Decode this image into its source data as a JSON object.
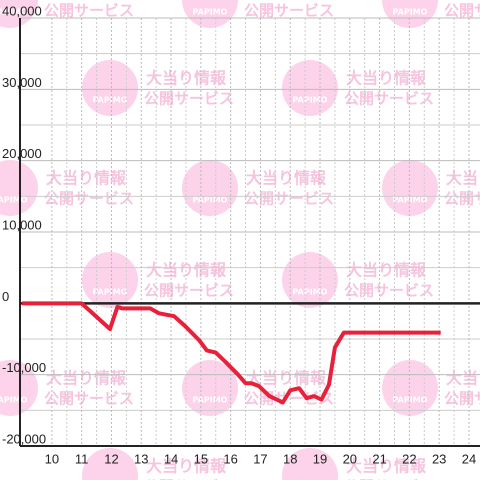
{
  "chart_data": {
    "type": "line",
    "x": [
      9.0,
      11.0,
      11.45,
      11.95,
      12.2,
      12.35,
      13.3,
      13.6,
      14.1,
      14.45,
      14.95,
      15.2,
      15.5,
      15.85,
      16.25,
      16.5,
      16.7,
      16.95,
      17.3,
      17.75,
      18.0,
      18.3,
      18.55,
      18.8,
      19.05,
      19.3,
      19.5,
      19.8,
      23.05
    ],
    "series": [
      {
        "color": "#e8203a",
        "values": [
          0,
          0,
          -1700,
          -3600,
          -500,
          -700,
          -700,
          -1400,
          -1800,
          -3100,
          -5200,
          -6600,
          -6900,
          -8300,
          -10000,
          -11200,
          -11200,
          -11600,
          -13000,
          -13900,
          -12200,
          -11900,
          -13300,
          -13000,
          -13500,
          -11400,
          -6200,
          -4100,
          -4100
        ]
      }
    ],
    "xlim": [
      8.93,
      24.37
    ],
    "xticks": [
      10,
      11,
      12,
      13,
      14,
      15,
      16,
      17,
      18,
      19,
      20,
      21,
      22,
      23,
      24
    ],
    "x_minor_ticks": [
      10.5,
      11.5,
      12.5,
      13.5,
      14.5,
      15.5,
      16.5,
      17.5,
      18.5,
      19.5,
      20.5,
      21.5,
      22.5,
      23.5
    ],
    "ylim": [
      -20000,
      40000
    ],
    "yticks": [
      {
        "value": -20000,
        "label": "-20,000"
      },
      {
        "value": -10000,
        "label": "-10,000"
      },
      0,
      {
        "value": 10000,
        "label": "10,000"
      },
      {
        "value": 20000,
        "label": "20,000"
      },
      {
        "value": 30000,
        "label": "30,000"
      },
      {
        "value": 40000,
        "label": "40,000"
      }
    ],
    "y_minor_ticks": [
      -15000,
      -5000,
      5000,
      15000,
      25000,
      35000
    ],
    "grid": true
  },
  "watermark": {
    "brand": "PAPIMO",
    "lines": [
      "大当り情報",
      "公開サービス"
    ]
  }
}
